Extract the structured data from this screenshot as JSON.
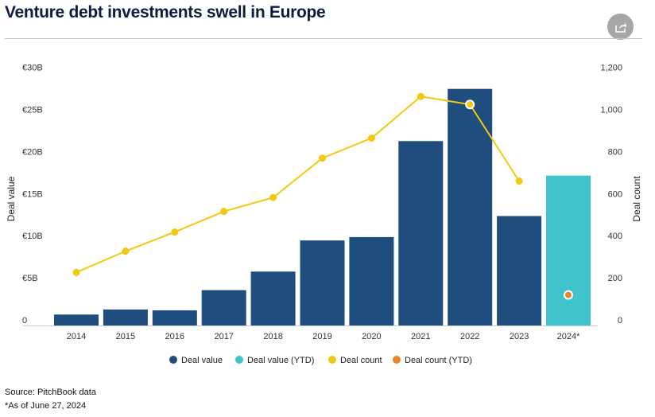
{
  "title": "Venture debt investments swell in Europe",
  "source": "Source: PitchBook data",
  "note": "*As of June 27, 2024",
  "colors": {
    "deal_value": "#1f4e7e",
    "deal_value_ytd": "#40c3ca",
    "deal_count": "#f2c811",
    "deal_count_ytd": "#e8872b"
  },
  "chart_data": {
    "type": "bar",
    "categories": [
      "2014",
      "2015",
      "2016",
      "2017",
      "2018",
      "2019",
      "2020",
      "2021",
      "2022",
      "2023",
      "2024*"
    ],
    "series": [
      {
        "name": "Deal value",
        "axis": "left",
        "unit": "€B",
        "values": [
          1.3,
          1.9,
          1.8,
          4.2,
          6.4,
          10.1,
          10.5,
          21.9,
          28.1,
          13.0,
          null
        ]
      },
      {
        "name": "Deal value (YTD)",
        "axis": "left",
        "unit": "€B",
        "values": [
          null,
          null,
          null,
          null,
          null,
          null,
          null,
          null,
          null,
          null,
          17.8
        ]
      },
      {
        "name": "Deal count",
        "axis": "right",
        "type": "line",
        "values": [
          252,
          353,
          444,
          542,
          608,
          795,
          890,
          1088,
          1050,
          686,
          null
        ]
      },
      {
        "name": "Deal count (YTD)",
        "axis": "right",
        "type": "scatter",
        "values": [
          null,
          null,
          null,
          null,
          null,
          null,
          null,
          null,
          null,
          null,
          145
        ]
      }
    ],
    "ylabel": "Deal value",
    "y2label": "Deal count",
    "ylim": [
      0,
      30
    ],
    "y2lim": [
      0,
      1200
    ],
    "yticks": [
      "0",
      "€5B",
      "€10B",
      "€15B",
      "€20B",
      "€25B",
      "€30B"
    ],
    "y2ticks": [
      "0",
      "200",
      "400",
      "600",
      "800",
      "1,000",
      "1,200"
    ],
    "legend": [
      "Deal value",
      "Deal value (YTD)",
      "Deal count",
      "Deal count (YTD)"
    ],
    "legend_position": "bottom"
  }
}
